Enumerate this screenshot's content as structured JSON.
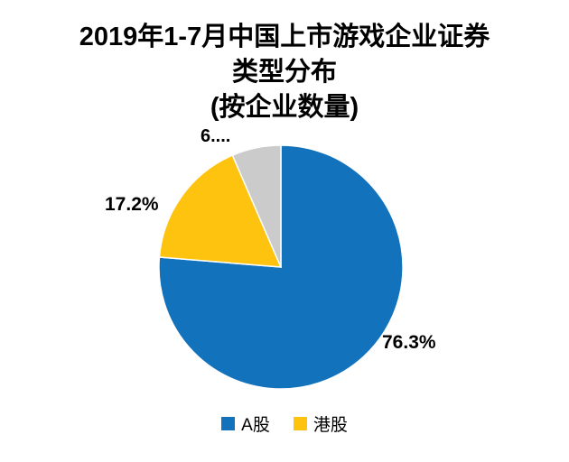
{
  "title": {
    "line1": "2019年1-7月中国上市游戏企业证券",
    "line2": "类型分布",
    "line3": "(按企业数量)"
  },
  "chart_data": {
    "type": "pie",
    "title": "2019年1-7月中国上市游戏企业证券类型分布 (按企业数量)",
    "slices": [
      {
        "label": "A股",
        "value": 76.3,
        "data_label": "76.3%",
        "color": "#1272bc"
      },
      {
        "label": "港股",
        "value": 17.2,
        "data_label": "17.2%",
        "color": "#fdc30f"
      },
      {
        "label": "",
        "value": 6.5,
        "data_label": "6....",
        "color": "#cbcbcb"
      }
    ],
    "start_angle_deg": 0,
    "direction": "clockwise",
    "legend_position": "bottom",
    "legend_entries": [
      "A股",
      "港股"
    ]
  },
  "data_labels": {
    "blue": "76.3%",
    "yellow": "17.2%",
    "gray": "6...."
  },
  "legend": {
    "items": [
      {
        "label": "A股",
        "color": "#1272bc"
      },
      {
        "label": "港股",
        "color": "#fdc30f"
      }
    ]
  }
}
